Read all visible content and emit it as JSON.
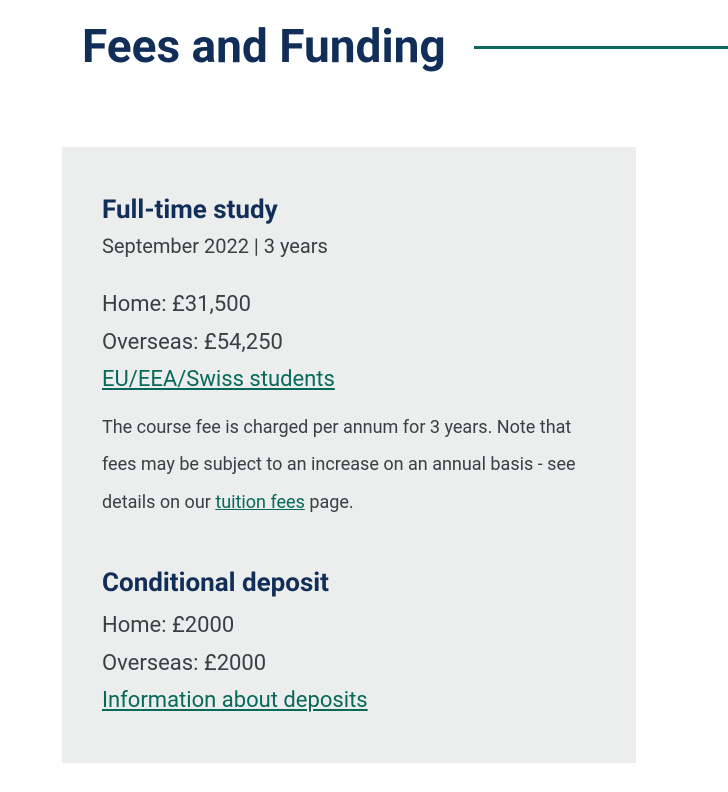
{
  "page": {
    "title": "Fees and Funding"
  },
  "fulltime": {
    "heading": "Full-time study",
    "sub": "September 2022 | 3 years",
    "home": "Home: £31,500",
    "overseas": "Overseas: £54,250",
    "eu_link": "EU/EEA/Swiss students",
    "note_pre": "The course fee is charged per annum for 3 years. Note that fees may be subject to an increase on an annual basis - see details on our ",
    "note_link": "tuition fees",
    "note_post": " page."
  },
  "deposit": {
    "heading": "Conditional deposit",
    "home": "Home: £2000",
    "overseas": "Overseas: £2000",
    "info_link": "Information about deposits"
  },
  "colors": {
    "primary_text": "#112e58",
    "body_text": "#3a3f44",
    "link": "#06695a",
    "rule": "#0d6b5e",
    "card_bg": "#eceded",
    "page_bg": "#ffffff"
  }
}
